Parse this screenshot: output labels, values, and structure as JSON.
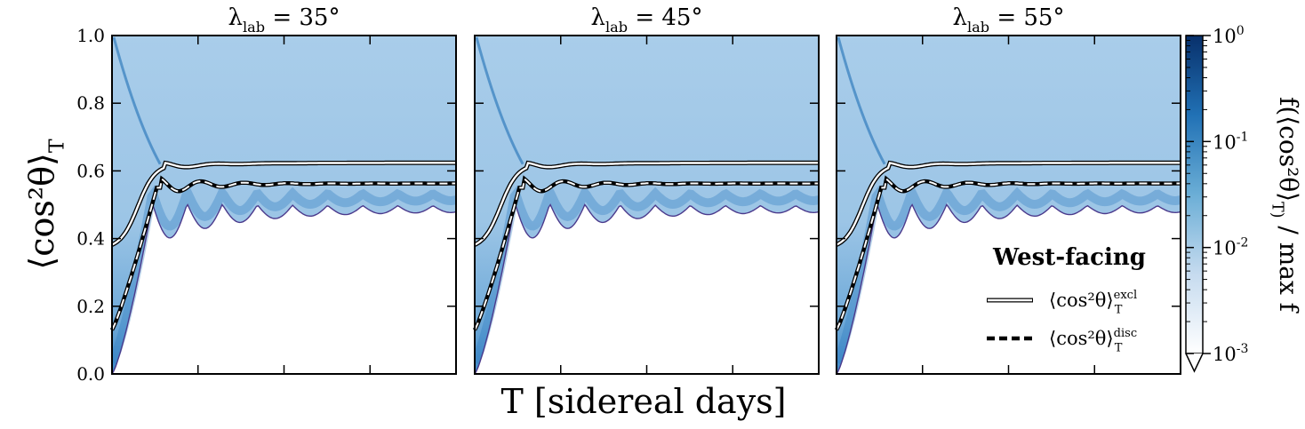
{
  "figure": {
    "xlabel": "T [sidereal days]",
    "ylabel": "⟨cos²θ⟩_T",
    "colorbar_label": "f(⟨cos²θ⟩_T) / max f",
    "colors": {
      "cmap_light": "#eef5fc",
      "cmap_mid": "#6fa8d7",
      "cmap_dark": "#08306b",
      "edge": "#4b3a8c"
    }
  },
  "chart_data": [
    {
      "type": "heatmap",
      "panel_index": 0,
      "title": "λ_lab = 35°",
      "xlabel": "",
      "ylabel": "⟨cos²θ⟩_T",
      "ylim": [
        0,
        1
      ],
      "yticks": [
        "0.0",
        "0.2",
        "0.4",
        "0.6",
        "0.8",
        "1.0"
      ],
      "grid": false
    },
    {
      "type": "heatmap",
      "panel_index": 1,
      "title": "λ_lab = 45°",
      "xlabel": "T [sidereal days]",
      "ylabel": "",
      "ylim": [
        0,
        1
      ],
      "grid": false
    },
    {
      "type": "heatmap",
      "panel_index": 2,
      "title": "λ_lab = 55°",
      "xlabel": "",
      "ylabel": "",
      "ylim": [
        0,
        1
      ],
      "grid": false,
      "legend": {
        "title": "West-facing",
        "placement": "lower-right",
        "entries": [
          {
            "label": "⟨cos²θ⟩_T^excl",
            "style": "solid"
          },
          {
            "label": "⟨cos²θ⟩_T^disc",
            "style": "dashed"
          }
        ]
      }
    }
  ],
  "colorbar": {
    "scale": "log",
    "range": [
      0.001,
      1
    ],
    "ticks": [
      "10^0",
      "10^-1",
      "10^-2",
      "10^-3"
    ]
  }
}
